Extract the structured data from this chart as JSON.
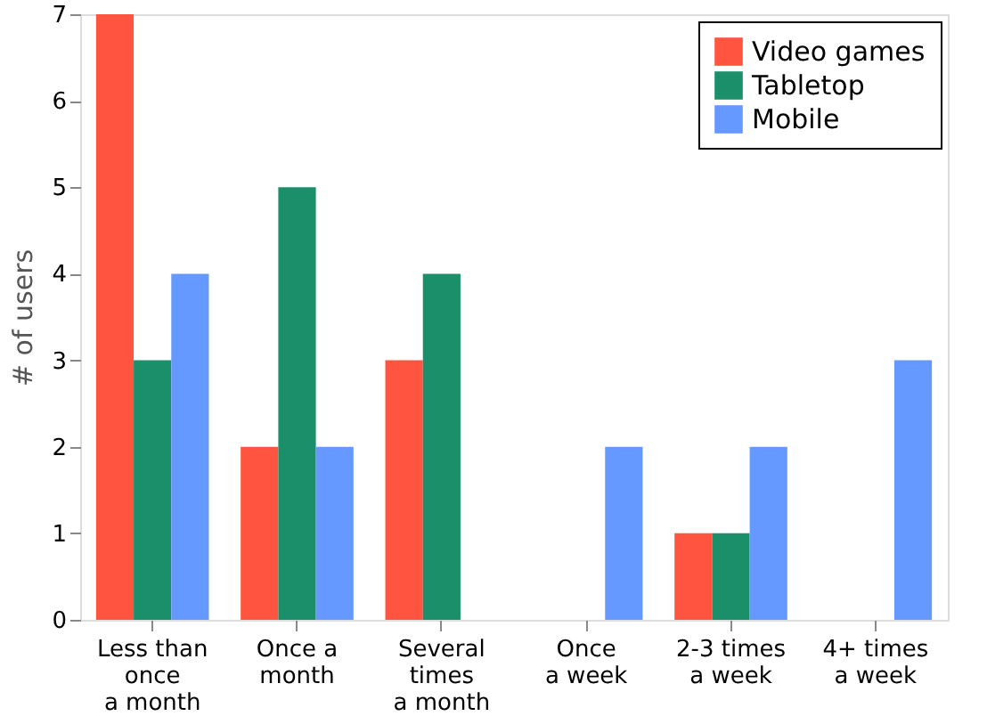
{
  "chart_data": {
    "type": "bar",
    "categories": [
      "Less than\nonce\na month",
      "Once a\nmonth",
      "Several\ntimes\na month",
      "Once\na week",
      "2-3 times\na week",
      "4+ times\na week"
    ],
    "series": [
      {
        "name": "Video games",
        "color": "#ff5540",
        "values": [
          7,
          2,
          3,
          0,
          1,
          0
        ]
      },
      {
        "name": "Tabletop",
        "color": "#1b8f6a",
        "values": [
          3,
          5,
          4,
          0,
          1,
          0
        ]
      },
      {
        "name": "Mobile",
        "color": "#6699ff",
        "values": [
          4,
          2,
          0,
          2,
          2,
          3
        ]
      }
    ],
    "ylabel": "# of users",
    "ylim": [
      0,
      7
    ],
    "yticks": [
      0,
      1,
      2,
      3,
      4,
      5,
      6,
      7
    ],
    "legend": "top right",
    "grid": false
  }
}
